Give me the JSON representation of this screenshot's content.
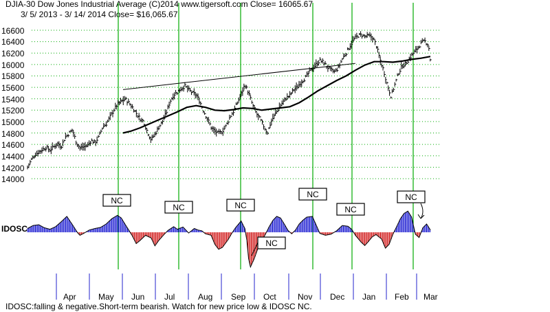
{
  "header": {
    "line1": "DJIA-30  Dow Jones Industrial Average  (C)2014 www.tigersoft.com      Close=  16065.67",
    "line2": "3/ 5/ 2013 -  3/ 14/ 2014   Close= $16,065.67"
  },
  "footer": {
    "note": "IDOSC:falling & negative.Short-term bearish. Watch for new price low & IDOSC NC."
  },
  "colors": {
    "price": "#000000",
    "grid": "#00aa00",
    "signal_line": "#00aa00",
    "osc_positive": "#0000cc",
    "osc_negative": "#cc0000",
    "osc_line": "#000000"
  },
  "chart_data": [
    {
      "type": "line",
      "title": "DJIA-30 Dow Jones Industrial Average",
      "ylim": [
        14000,
        16600
      ],
      "yticks": [
        14000,
        14200,
        14400,
        14600,
        14800,
        15000,
        15200,
        15400,
        15600,
        15800,
        16000,
        16200,
        16400,
        16600
      ],
      "grid": "horizontal dotted",
      "x_months": [
        "Apr",
        "May",
        "Jun",
        "Jul",
        "Aug",
        "Sep",
        "Oct",
        "Nov",
        "Dec",
        "Jan",
        "Feb",
        "Mar"
      ],
      "series": [
        {
          "kind": "daily high-low bars (approximate closes)",
          "values": [
            [
              0,
              14200
            ],
            [
              4,
              14330
            ],
            [
              8,
              14420
            ],
            [
              12,
              14470
            ],
            [
              16,
              14510
            ],
            [
              20,
              14550
            ],
            [
              24,
              14500
            ],
            [
              28,
              14560
            ],
            [
              32,
              14620
            ],
            [
              36,
              14560
            ],
            [
              40,
              14720
            ],
            [
              44,
              14790
            ],
            [
              48,
              14860
            ],
            [
              52,
              14640
            ],
            [
              56,
              14540
            ],
            [
              60,
              14560
            ],
            [
              64,
              14580
            ],
            [
              68,
              14670
            ],
            [
              72,
              14630
            ],
            [
              76,
              14730
            ],
            [
              80,
              14900
            ],
            [
              84,
              14960
            ],
            [
              88,
              15080
            ],
            [
              92,
              15200
            ],
            [
              96,
              15300
            ],
            [
              100,
              15350
            ],
            [
              104,
              15400
            ],
            [
              108,
              15330
            ],
            [
              112,
              15250
            ],
            [
              116,
              15150
            ],
            [
              120,
              15050
            ],
            [
              124,
              15000
            ],
            [
              128,
              14820
            ],
            [
              132,
              14680
            ],
            [
              136,
              14780
            ],
            [
              140,
              14900
            ],
            [
              144,
              15000
            ],
            [
              148,
              15150
            ],
            [
              152,
              15350
            ],
            [
              156,
              15470
            ],
            [
              160,
              15520
            ],
            [
              164,
              15580
            ],
            [
              168,
              15620
            ],
            [
              172,
              15560
            ],
            [
              176,
              15500
            ],
            [
              180,
              15470
            ],
            [
              184,
              15350
            ],
            [
              188,
              15180
            ],
            [
              192,
              15050
            ],
            [
              196,
              14900
            ],
            [
              200,
              14830
            ],
            [
              204,
              14790
            ],
            [
              208,
              14830
            ],
            [
              212,
              14930
            ],
            [
              216,
              15080
            ],
            [
              220,
              15180
            ],
            [
              224,
              15330
            ],
            [
              228,
              15480
            ],
            [
              232,
              15650
            ],
            [
              236,
              15500
            ],
            [
              240,
              15300
            ],
            [
              244,
              15150
            ],
            [
              248,
              15050
            ],
            [
              252,
              14920
            ],
            [
              256,
              14800
            ],
            [
              260,
              15000
            ],
            [
              264,
              15120
            ],
            [
              268,
              15230
            ],
            [
              272,
              15330
            ],
            [
              276,
              15410
            ],
            [
              280,
              15460
            ],
            [
              284,
              15560
            ],
            [
              288,
              15600
            ],
            [
              292,
              15700
            ],
            [
              296,
              15750
            ],
            [
              300,
              15850
            ],
            [
              304,
              15930
            ],
            [
              308,
              16000
            ],
            [
              312,
              16070
            ],
            [
              316,
              16040
            ],
            [
              320,
              15950
            ],
            [
              324,
              15900
            ],
            [
              328,
              15870
            ],
            [
              332,
              15950
            ],
            [
              336,
              16100
            ],
            [
              340,
              16200
            ],
            [
              344,
              16320
            ],
            [
              348,
              16430
            ],
            [
              352,
              16500
            ],
            [
              356,
              16520
            ],
            [
              360,
              16490
            ],
            [
              364,
              16500
            ],
            [
              368,
              16480
            ],
            [
              372,
              16350
            ],
            [
              376,
              16100
            ],
            [
              380,
              15900
            ],
            [
              384,
              15650
            ],
            [
              388,
              15440
            ],
            [
              392,
              15650
            ],
            [
              396,
              15850
            ],
            [
              400,
              15980
            ],
            [
              404,
              16020
            ],
            [
              408,
              16120
            ],
            [
              412,
              16200
            ],
            [
              416,
              16280
            ],
            [
              420,
              16370
            ],
            [
              424,
              16410
            ],
            [
              428,
              16340
            ],
            [
              430,
              16065.67
            ]
          ]
        },
        {
          "kind": "moving average",
          "values": [
            [
              102,
              14800
            ],
            [
              110,
              14830
            ],
            [
              120,
              14890
            ],
            [
              130,
              14960
            ],
            [
              140,
              15030
            ],
            [
              150,
              15100
            ],
            [
              160,
              15170
            ],
            [
              170,
              15250
            ],
            [
              180,
              15280
            ],
            [
              190,
              15250
            ],
            [
              200,
              15200
            ],
            [
              210,
              15190
            ],
            [
              220,
              15210
            ],
            [
              230,
              15240
            ],
            [
              240,
              15230
            ],
            [
              250,
              15200
            ],
            [
              260,
              15220
            ],
            [
              270,
              15240
            ],
            [
              280,
              15260
            ],
            [
              290,
              15330
            ],
            [
              300,
              15430
            ],
            [
              310,
              15540
            ],
            [
              320,
              15630
            ],
            [
              330,
              15720
            ],
            [
              340,
              15800
            ],
            [
              350,
              15900
            ],
            [
              360,
              15990
            ],
            [
              370,
              16050
            ],
            [
              380,
              16050
            ],
            [
              390,
              16040
            ],
            [
              400,
              16060
            ],
            [
              410,
              16090
            ],
            [
              420,
              16110
            ],
            [
              430,
              16140
            ]
          ]
        },
        {
          "kind": "resistance trendline",
          "values": [
            [
              102,
              15560
            ],
            [
              350,
              16020
            ]
          ]
        }
      ]
    },
    {
      "type": "area",
      "name": "IDOSC",
      "ylim": [
        -100,
        100
      ],
      "values": [
        [
          0,
          10
        ],
        [
          6,
          18
        ],
        [
          12,
          20
        ],
        [
          18,
          12
        ],
        [
          24,
          8
        ],
        [
          30,
          15
        ],
        [
          36,
          28
        ],
        [
          42,
          42
        ],
        [
          48,
          20
        ],
        [
          52,
          4
        ],
        [
          54,
          -3
        ],
        [
          56,
          -8
        ],
        [
          60,
          -3
        ],
        [
          66,
          6
        ],
        [
          72,
          10
        ],
        [
          78,
          13
        ],
        [
          84,
          22
        ],
        [
          90,
          36
        ],
        [
          96,
          45
        ],
        [
          100,
          38
        ],
        [
          104,
          22
        ],
        [
          108,
          6
        ],
        [
          112,
          -10
        ],
        [
          116,
          -30
        ],
        [
          120,
          -22
        ],
        [
          126,
          -8
        ],
        [
          132,
          -15
        ],
        [
          136,
          -36
        ],
        [
          140,
          -22
        ],
        [
          146,
          -5
        ],
        [
          150,
          5
        ],
        [
          156,
          15
        ],
        [
          160,
          8
        ],
        [
          166,
          14
        ],
        [
          172,
          -2
        ],
        [
          178,
          10
        ],
        [
          182,
          6
        ],
        [
          186,
          4
        ],
        [
          190,
          -4
        ],
        [
          196,
          -8
        ],
        [
          200,
          -32
        ],
        [
          204,
          -45
        ],
        [
          208,
          -40
        ],
        [
          214,
          -20
        ],
        [
          218,
          -3
        ],
        [
          222,
          12
        ],
        [
          226,
          24
        ],
        [
          228,
          30
        ],
        [
          232,
          10
        ],
        [
          234,
          -20
        ],
        [
          236,
          -70
        ],
        [
          238,
          -92
        ],
        [
          242,
          -70
        ],
        [
          246,
          -42
        ],
        [
          250,
          -22
        ],
        [
          254,
          -5
        ],
        [
          258,
          15
        ],
        [
          262,
          32
        ],
        [
          266,
          42
        ],
        [
          270,
          38
        ],
        [
          274,
          22
        ],
        [
          278,
          5
        ],
        [
          282,
          -4
        ],
        [
          286,
          6
        ],
        [
          290,
          22
        ],
        [
          294,
          32
        ],
        [
          298,
          40
        ],
        [
          304,
          42
        ],
        [
          308,
          20
        ],
        [
          312,
          -3
        ],
        [
          318,
          -8
        ],
        [
          324,
          -5
        ],
        [
          330,
          4
        ],
        [
          336,
          18
        ],
        [
          342,
          16
        ],
        [
          346,
          8
        ],
        [
          350,
          -8
        ],
        [
          356,
          -26
        ],
        [
          360,
          -35
        ],
        [
          364,
          -24
        ],
        [
          368,
          -12
        ],
        [
          372,
          -6
        ],
        [
          378,
          -18
        ],
        [
          382,
          -42
        ],
        [
          386,
          -32
        ],
        [
          390,
          -5
        ],
        [
          394,
          15
        ],
        [
          398,
          36
        ],
        [
          402,
          50
        ],
        [
          406,
          56
        ],
        [
          410,
          40
        ],
        [
          414,
          -5
        ],
        [
          418,
          -14
        ],
        [
          422,
          12
        ],
        [
          426,
          22
        ],
        [
          430,
          6
        ]
      ]
    }
  ],
  "y_labels": [
    "16600",
    "16400",
    "16200",
    "16000",
    "15800",
    "15600",
    "15400",
    "15200",
    "15000",
    "14800",
    "14600",
    "14400",
    "14200",
    "14000"
  ],
  "month_labels": [
    "Apr",
    "May",
    "Jun",
    "Jul",
    "Aug",
    "Sep",
    "Oct",
    "Nov",
    "Dec",
    "Jan",
    "Feb",
    "Mar"
  ],
  "indicator_label": "IDOSC",
  "nc_labels": [
    "NC",
    "NC",
    "NC",
    "NC",
    "NC",
    "NC",
    "NC"
  ]
}
